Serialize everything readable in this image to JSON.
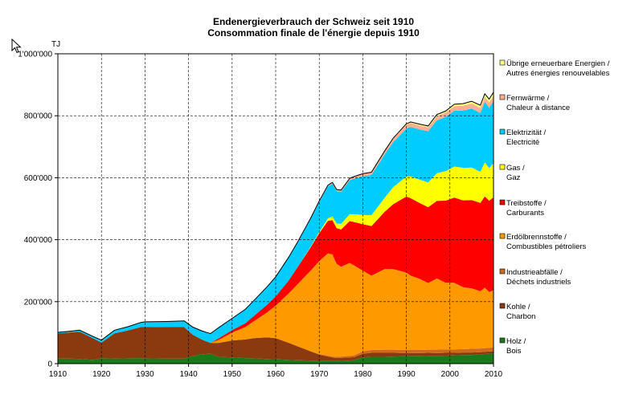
{
  "chart_data": {
    "type": "area",
    "stacked": true,
    "title": "Endenergieverbrauch der Schweiz seit 1910",
    "subtitle": "Consommation finale de l'énergie depuis 1910",
    "ylabel": "TJ",
    "xlim": [
      1910,
      2010
    ],
    "ylim": [
      0,
      1000000
    ],
    "x_ticks": [
      1910,
      1920,
      1930,
      1940,
      1950,
      1960,
      1970,
      1980,
      1990,
      2000,
      2010
    ],
    "x_tick_labels": [
      "1910",
      "1920",
      "1930",
      "1940",
      "1950",
      "1960",
      "1970",
      "1980",
      "1990",
      "2000",
      "2010"
    ],
    "y_ticks": [
      0,
      200000,
      400000,
      600000,
      800000,
      1000000
    ],
    "y_tick_labels": [
      "0",
      "200'000",
      "400'000",
      "600'000",
      "800'000",
      "1'000'000"
    ],
    "grid": true,
    "legend_position": "right",
    "x": [
      1910,
      1913,
      1915,
      1918,
      1920,
      1923,
      1926,
      1929,
      1930,
      1935,
      1939,
      1941,
      1943,
      1945,
      1947,
      1950,
      1953,
      1955,
      1958,
      1960,
      1963,
      1965,
      1968,
      1970,
      1972,
      1973,
      1974,
      1975,
      1977,
      1978,
      1980,
      1982,
      1985,
      1987,
      1990,
      1991,
      1993,
      1995,
      1997,
      1999,
      2001,
      2003,
      2005,
      2007,
      2008,
      2009,
      2010
    ],
    "series": [
      {
        "name": "Holz / Bois",
        "color": "#1a7a1a",
        "values": [
          16000,
          16000,
          15000,
          12000,
          18000,
          16000,
          17000,
          18000,
          17000,
          16000,
          16000,
          25000,
          30000,
          32000,
          22000,
          20000,
          18000,
          17000,
          15000,
          14000,
          12000,
          11000,
          10000,
          9000,
          8000,
          8000,
          8000,
          9000,
          10000,
          11000,
          20000,
          22000,
          22000,
          23000,
          24000,
          24000,
          24000,
          25000,
          25000,
          26000,
          27000,
          28000,
          28000,
          30000,
          31000,
          32000,
          33000
        ]
      },
      {
        "name": "Kohle / Charbon",
        "color": "#8b3a10",
        "values": [
          82000,
          85000,
          88000,
          70000,
          50000,
          82000,
          90000,
          100000,
          102000,
          102000,
          102000,
          68000,
          48000,
          35000,
          45000,
          55000,
          60000,
          65000,
          70000,
          68000,
          55000,
          45000,
          30000,
          20000,
          15000,
          12000,
          10000,
          10000,
          10000,
          10000,
          12000,
          13000,
          13000,
          12000,
          10000,
          10000,
          10000,
          10000,
          9000,
          9000,
          8000,
          8000,
          8000,
          7000,
          7000,
          7000,
          7000
        ]
      },
      {
        "name": "Industrieabfälle / Déchets industriels",
        "color": "#d06820",
        "values": [
          0,
          0,
          0,
          0,
          0,
          0,
          0,
          0,
          0,
          0,
          0,
          0,
          0,
          0,
          0,
          0,
          0,
          0,
          0,
          0,
          0,
          0,
          0,
          2000,
          3000,
          3000,
          4000,
          4000,
          5000,
          6000,
          8000,
          9000,
          10000,
          10000,
          10000,
          10000,
          10000,
          10000,
          11000,
          11000,
          11000,
          11000,
          12000,
          12000,
          12000,
          12000,
          12000
        ]
      },
      {
        "name": "Erdölbrennstoffe / Combustibles pétroliers",
        "color": "#ff9900",
        "values": [
          0,
          0,
          0,
          0,
          0,
          0,
          0,
          0,
          0,
          0,
          0,
          0,
          0,
          0,
          10000,
          25000,
          40000,
          55000,
          80000,
          105000,
          160000,
          200000,
          260000,
          300000,
          330000,
          330000,
          300000,
          290000,
          300000,
          290000,
          260000,
          240000,
          260000,
          260000,
          250000,
          240000,
          230000,
          215000,
          230000,
          215000,
          215000,
          200000,
          195000,
          185000,
          195000,
          180000,
          185000
        ]
      },
      {
        "name": "Treibstoffe / Carburants",
        "color": "#ff0000",
        "values": [
          0,
          0,
          0,
          0,
          0,
          0,
          0,
          0,
          0,
          0,
          0,
          0,
          0,
          0,
          5000,
          8000,
          12000,
          17000,
          25000,
          30000,
          42000,
          55000,
          75000,
          90000,
          105000,
          110000,
          115000,
          120000,
          135000,
          140000,
          150000,
          160000,
          185000,
          210000,
          245000,
          250000,
          245000,
          245000,
          250000,
          265000,
          275000,
          280000,
          285000,
          285000,
          295000,
          295000,
          300000
        ]
      },
      {
        "name": "Gas / Gaz",
        "color": "#ffff00",
        "values": [
          0,
          0,
          0,
          0,
          0,
          0,
          0,
          0,
          0,
          0,
          0,
          0,
          0,
          0,
          0,
          0,
          0,
          0,
          0,
          0,
          0,
          0,
          2000,
          4000,
          8000,
          12000,
          15000,
          18000,
          22000,
          25000,
          30000,
          35000,
          45000,
          55000,
          65000,
          70000,
          75000,
          80000,
          90000,
          95000,
          100000,
          105000,
          105000,
          100000,
          110000,
          105000,
          110000
        ]
      },
      {
        "name": "Elektrizität / Electricité",
        "color": "#00ccff",
        "values": [
          3000,
          4000,
          5000,
          6000,
          8000,
          10000,
          12000,
          15000,
          16000,
          18000,
          20000,
          25000,
          28000,
          30000,
          35000,
          38000,
          45000,
          50000,
          58000,
          63000,
          75000,
          80000,
          90000,
          97000,
          103000,
          106000,
          105000,
          104000,
          110000,
          115000,
          125000,
          130000,
          140000,
          145000,
          155000,
          160000,
          162000,
          165000,
          170000,
          175000,
          180000,
          185000,
          190000,
          190000,
          195000,
          195000,
          200000
        ]
      },
      {
        "name": "Fernwärme / Chaleur à distance",
        "color": "#ffb090",
        "values": [
          0,
          0,
          0,
          0,
          0,
          0,
          0,
          0,
          0,
          0,
          0,
          0,
          0,
          0,
          0,
          0,
          0,
          0,
          0,
          0,
          0,
          1000,
          2000,
          3000,
          4000,
          4000,
          5000,
          5000,
          6000,
          7000,
          8000,
          9000,
          10000,
          11000,
          12000,
          13000,
          13000,
          13000,
          14000,
          14000,
          15000,
          15000,
          16000,
          16000,
          16000,
          17000,
          17000
        ]
      },
      {
        "name": "Übrige erneuerbare Energien / Autres énergies renouvelables",
        "color": "#ffff80",
        "values": [
          0,
          0,
          0,
          0,
          0,
          0,
          0,
          0,
          0,
          0,
          0,
          0,
          0,
          0,
          0,
          0,
          0,
          0,
          0,
          0,
          0,
          0,
          0,
          0,
          0,
          0,
          0,
          0,
          0,
          0,
          0,
          0,
          1000,
          2000,
          3000,
          3000,
          4000,
          4000,
          5000,
          5000,
          6000,
          7000,
          8000,
          9000,
          10000,
          11000,
          12000
        ]
      }
    ]
  },
  "legend_labels": [
    [
      "Übrige erneuerbare Energien /",
      "Autres énergies renouvelables"
    ],
    [
      "Fernwärme /",
      "Chaleur à distance"
    ],
    [
      "Elektrizität /",
      "Electricité"
    ],
    [
      "Gas /",
      "Gaz"
    ],
    [
      "Treibstoffe /",
      "Carburants"
    ],
    [
      "Erdölbrennstoffe /",
      "Combustibles pétroliers"
    ],
    [
      "Industrieabfälle /",
      "Déchets industriels"
    ],
    [
      "Kohle /",
      "Charbon"
    ],
    [
      "Holz /",
      "Bois"
    ]
  ],
  "legend_colors": [
    "#ffff80",
    "#ffb090",
    "#00ccff",
    "#ffff00",
    "#ff0000",
    "#ff9900",
    "#d06820",
    "#8b3a10",
    "#1a7a1a"
  ],
  "cursor_icon": "mouse-pointer-icon"
}
